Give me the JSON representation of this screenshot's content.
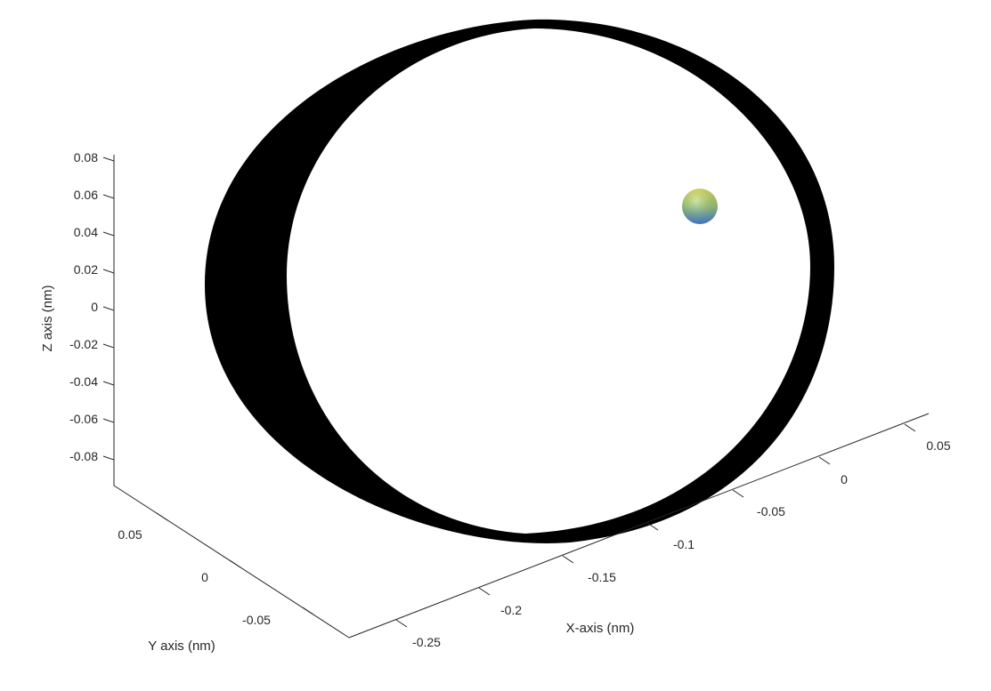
{
  "chart_data": {
    "type": "scatter",
    "view": "3d",
    "title": "",
    "xlabel": "X-axis (nm)",
    "ylabel": "Y axis (nm)",
    "zlabel": "Z axis (nm)",
    "xticks": [
      "-0.25",
      "-0.2",
      "-0.15",
      "-0.1",
      "-0.05",
      "0",
      "0.05"
    ],
    "yticks": [
      "0.05",
      "0",
      "-0.05"
    ],
    "zticks": [
      "0.08",
      "0.06",
      "0.04",
      "0.02",
      "0",
      "-0.02",
      "-0.04",
      "-0.06",
      "-0.08"
    ],
    "xlim": [
      -0.27,
      0.06
    ],
    "ylim": [
      -0.07,
      0.07
    ],
    "zlim": [
      -0.09,
      0.08
    ],
    "grid": false,
    "series": [
      {
        "type": "orbit-trajectory",
        "color": "#000000"
      },
      {
        "type": "sphere",
        "x": 0,
        "y": 0,
        "z": 0,
        "colors": [
          "#e8e85a",
          "#9fd07a",
          "#4a86e8"
        ]
      }
    ]
  }
}
